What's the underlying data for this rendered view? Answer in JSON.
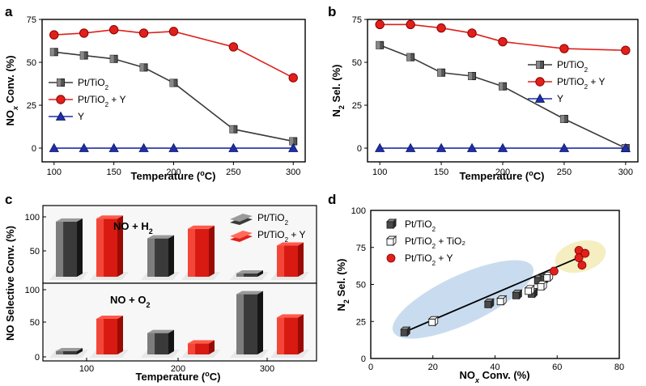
{
  "colors": {
    "black_series": "#3a3a3a",
    "red_series": "#e0201b",
    "blue_series": "#1f2fa8",
    "blue_ellipse": "#c9dcef",
    "yellow_ellipse": "#f5eec1"
  },
  "chart_data": [
    {
      "panel": "a",
      "type": "line",
      "xlabel": "Temperature (oC)",
      "ylabel": "NOx Conv. (%)",
      "x": [
        100,
        125,
        150,
        175,
        200,
        250,
        300
      ],
      "xticks": [
        "100",
        "150",
        "200",
        "250",
        "300"
      ],
      "xtick_values": [
        100,
        150,
        200,
        250,
        300
      ],
      "yticks": [
        "0",
        "25",
        "50",
        "75"
      ],
      "ytick_values": [
        0,
        25,
        50,
        75
      ],
      "xlim": [
        90,
        310
      ],
      "ylim": [
        -8,
        75
      ],
      "legend_position": "middle-left",
      "series": [
        {
          "name": "Pt/TiO2",
          "marker": "square",
          "color": "#3a3a3a",
          "values": [
            56,
            54,
            52,
            47,
            38,
            11,
            4
          ]
        },
        {
          "name": "Pt/TiO2 + Y",
          "marker": "circle",
          "color": "#e0201b",
          "values": [
            66,
            67,
            69,
            67,
            68,
            59,
            41
          ]
        },
        {
          "name": "Y",
          "marker": "triangle",
          "color": "#1f2fa8",
          "values": [
            0,
            0,
            0,
            0,
            0,
            0,
            0
          ]
        }
      ]
    },
    {
      "panel": "b",
      "type": "line",
      "xlabel": "Temperature (oC)",
      "ylabel": "N2 Sel. (%)",
      "x": [
        100,
        125,
        150,
        175,
        200,
        250,
        300
      ],
      "xticks": [
        "100",
        "150",
        "200",
        "250",
        "300"
      ],
      "xtick_values": [
        100,
        150,
        200,
        250,
        300
      ],
      "yticks": [
        "0",
        "25",
        "50",
        "75"
      ],
      "ytick_values": [
        0,
        25,
        50,
        75
      ],
      "xlim": [
        90,
        310
      ],
      "ylim": [
        -8,
        75
      ],
      "legend_position": "right",
      "series": [
        {
          "name": "Pt/TiO2",
          "marker": "square",
          "color": "#3a3a3a",
          "values": [
            60,
            53,
            44,
            42,
            36,
            17,
            0
          ]
        },
        {
          "name": "Pt/TiO2 + Y",
          "marker": "circle",
          "color": "#e0201b",
          "values": [
            72,
            72,
            70,
            67,
            62,
            58,
            57
          ]
        },
        {
          "name": "Y",
          "marker": "triangle",
          "color": "#1f2fa8",
          "values": [
            0,
            0,
            0,
            0,
            0,
            0,
            0
          ]
        }
      ]
    },
    {
      "panel": "c",
      "type": "bar",
      "xlabel": "Temperature (oC)",
      "ylabel": "NO Selective Conv. (%)",
      "categories": [
        "100",
        "200",
        "300"
      ],
      "legend_position": "top-right",
      "subpanels": [
        {
          "title": "NO + H2",
          "yticks": [
            "50",
            "100"
          ],
          "tick_values": [
            50,
            100
          ],
          "series": [
            {
              "name": "Pt/TiO2",
              "color": "#3a3a3a",
              "values": [
                92,
                64,
                5
              ]
            },
            {
              "name": "Pt/TiO2 + Y",
              "color": "#e0201b",
              "values": [
                97,
                80,
                52
              ]
            }
          ]
        },
        {
          "title": "NO + O2",
          "yticks": [
            "0",
            "50",
            "100"
          ],
          "tick_values": [
            0,
            50,
            100
          ],
          "series": [
            {
              "name": "Pt/TiO2",
              "color": "#3a3a3a",
              "values": [
                4,
                33,
                93
              ]
            },
            {
              "name": "Pt/TiO2 + Y",
              "color": "#e0201b",
              "values": [
                55,
                17,
                57
              ]
            }
          ]
        }
      ]
    },
    {
      "panel": "d",
      "type": "scatter",
      "xlabel": "NOx Conv. (%)",
      "ylabel": "N2 Sel. (%)",
      "xticks": [
        "0",
        "20",
        "40",
        "60",
        "80"
      ],
      "xtick_values": [
        0,
        20,
        40,
        60,
        80
      ],
      "yticks": [
        "0",
        "25",
        "50",
        "75",
        "100"
      ],
      "ytick_values": [
        0,
        25,
        50,
        75,
        100
      ],
      "xlim": [
        0,
        80
      ],
      "ylim": [
        0,
        100
      ],
      "legend_position": "top-left",
      "series": [
        {
          "name": "Pt/TiO2",
          "marker": "filled-cube",
          "x": [
            11,
            38,
            47,
            52,
            54,
            56
          ],
          "y": [
            18,
            37,
            43,
            44,
            53,
            54
          ]
        },
        {
          "name": "Pt/TiO2 + TiO2",
          "marker": "open-cube",
          "x": [
            20,
            42,
            51,
            55,
            57
          ],
          "y": [
            25,
            39,
            46,
            49,
            55
          ]
        },
        {
          "name": "Pt/TiO2 + Y",
          "marker": "circle",
          "x": [
            59,
            67,
            67,
            68,
            69
          ],
          "y": [
            59,
            73,
            68,
            63,
            71
          ]
        }
      ],
      "fit_line": {
        "x": [
          11,
          69
        ],
        "y": [
          18,
          70
        ]
      }
    }
  ],
  "panel_labels": [
    "a",
    "b",
    "c",
    "d"
  ]
}
